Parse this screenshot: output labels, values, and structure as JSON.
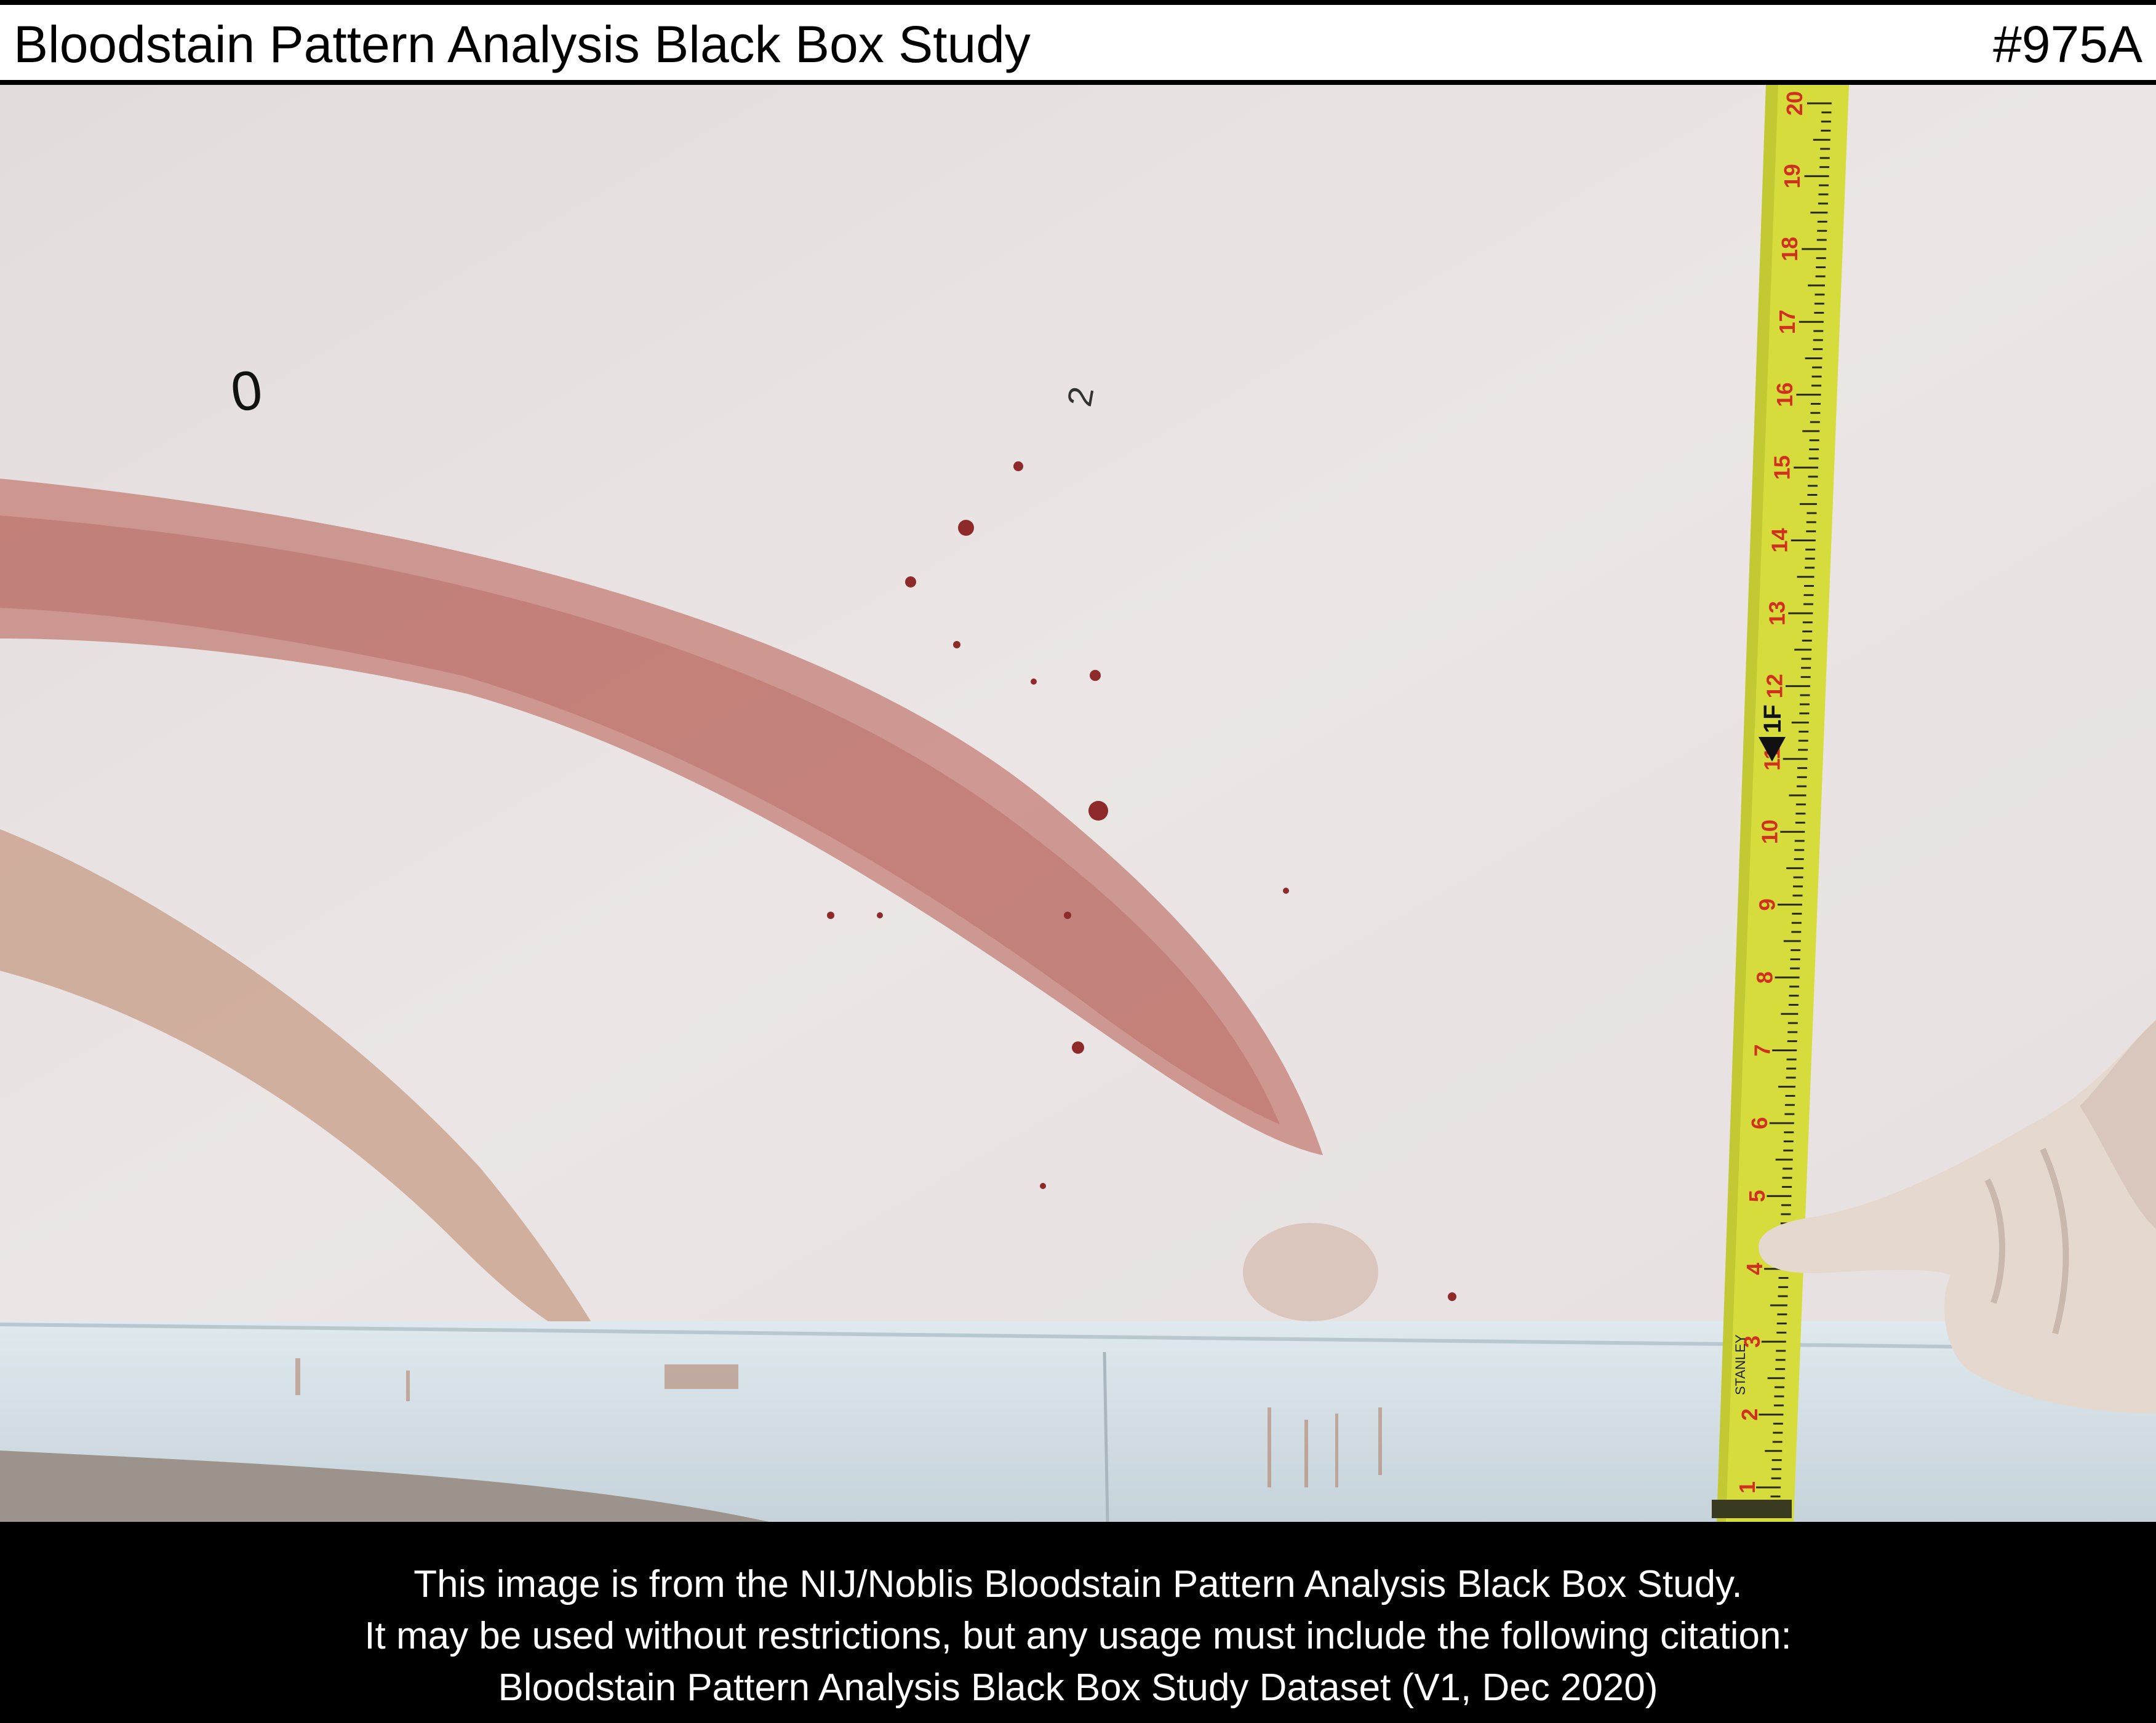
{
  "header": {
    "title": "Bloodstain Pattern Analysis Black Box Study",
    "image_code": "#975A"
  },
  "photo": {
    "marker_left": "0",
    "marker_right": "2",
    "tape_numbers": [
      "20",
      "19",
      "18",
      "17",
      "16",
      "15",
      "14",
      "13",
      "12",
      "11",
      "10",
      "9",
      "8",
      "7",
      "6",
      "5",
      "4",
      "3",
      "2",
      "1"
    ],
    "tape_foot_mark": "1F",
    "tape_brand": "STANLEY"
  },
  "footer": {
    "line1": "This image is from the NIJ/Noblis Bloodstain Pattern Analysis Black Box Study.",
    "line2": "It may be used without restrictions, but any usage must include the following citation:",
    "line3": "Bloodstain Pattern Analysis Black Box Study Dataset (V1, Dec 2020)"
  },
  "colors": {
    "wall": "#e9e4e3",
    "stain": "#b8605a",
    "tape": "#d9e040",
    "baseboard": "#d7e3ea",
    "glove": "#e6dad0"
  }
}
